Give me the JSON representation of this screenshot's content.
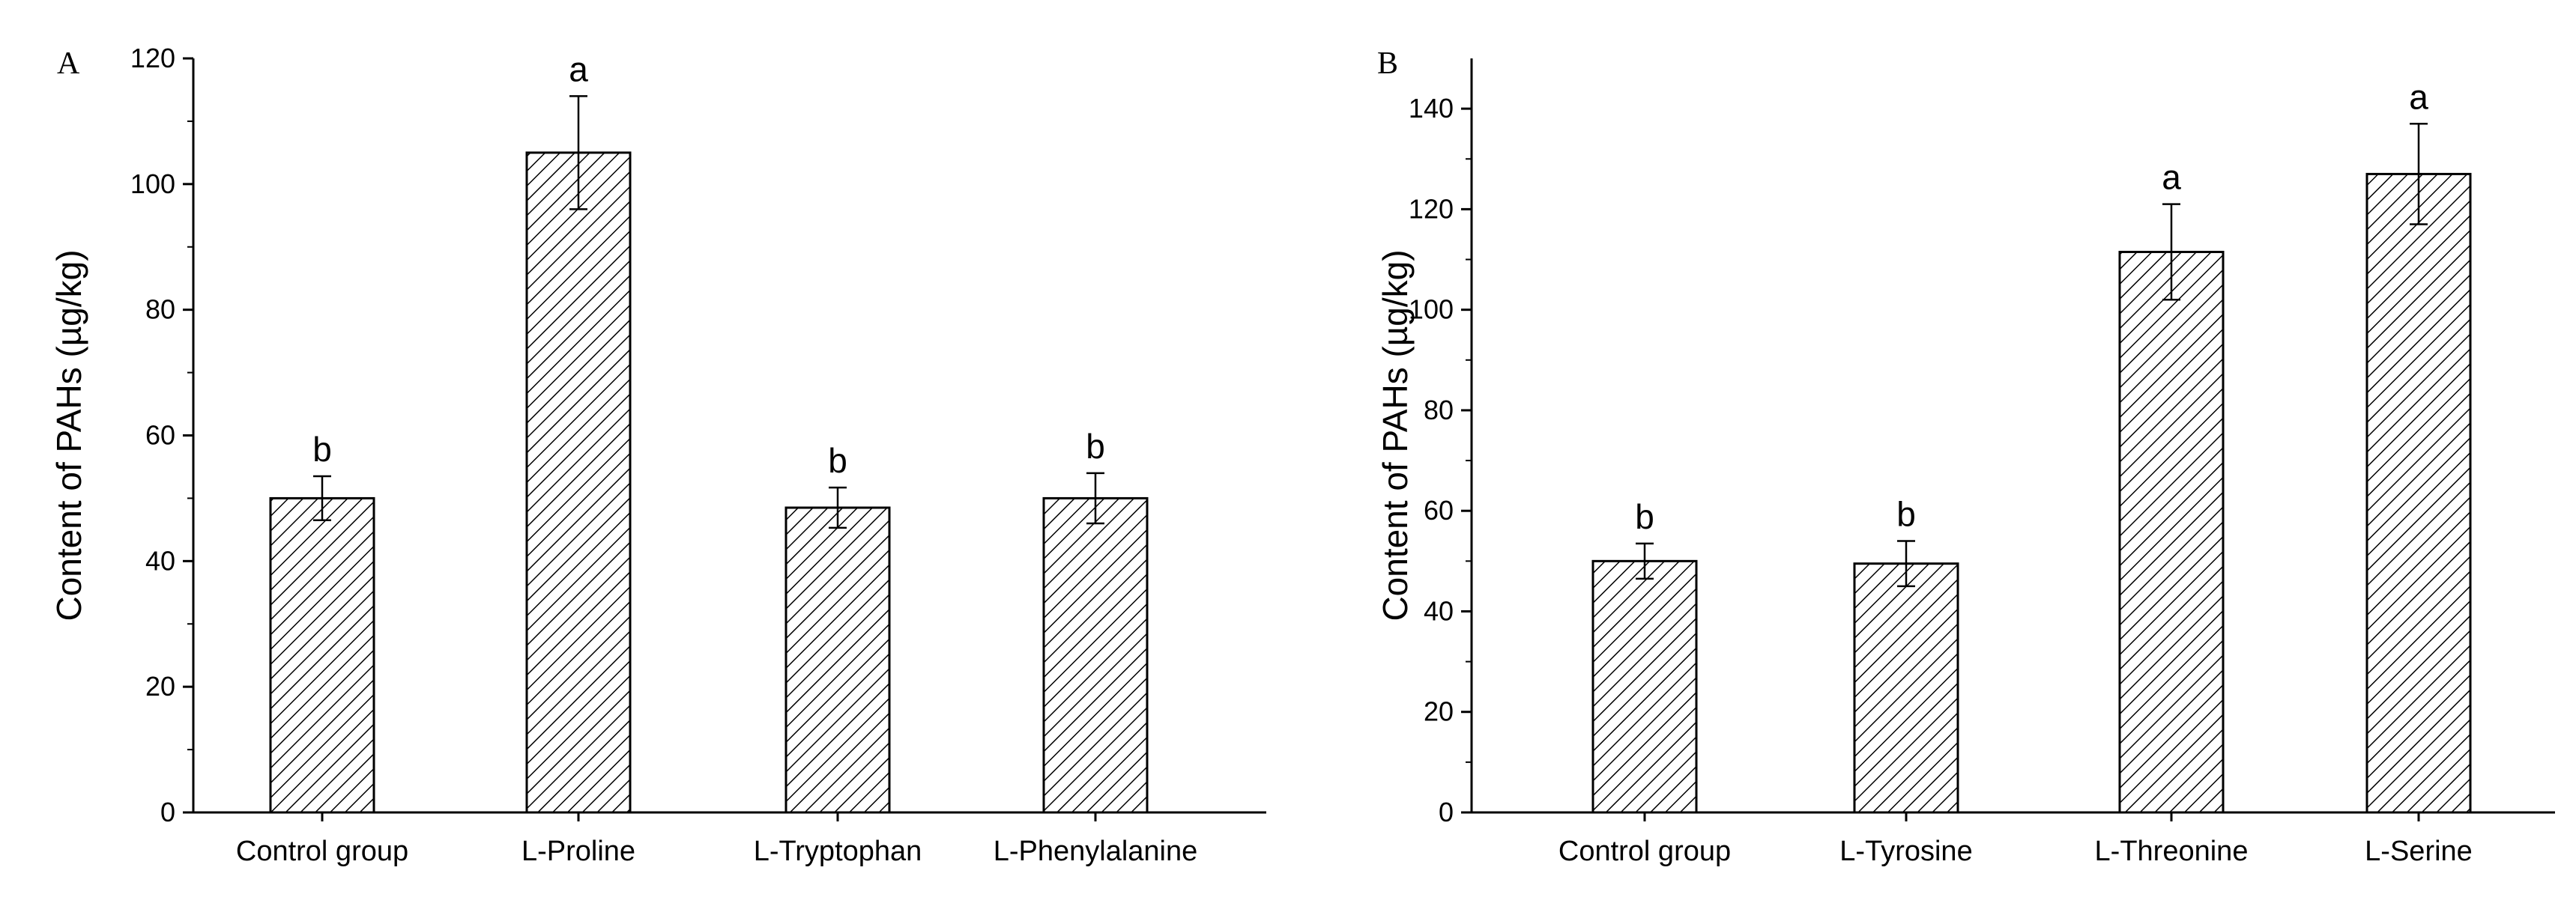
{
  "chart_data": [
    {
      "panel_label": "A",
      "type": "bar",
      "title": "",
      "xlabel": "",
      "ylabel": "Content of PAHs (µg/kg)",
      "ylim": [
        0,
        120
      ],
      "yticks": [
        0,
        20,
        40,
        60,
        80,
        100,
        120
      ],
      "categories": [
        "Control group",
        "L-Proline",
        "L-Tryptophan",
        "L-Phenylalanine"
      ],
      "values": [
        50,
        105,
        48.5,
        50
      ],
      "errors": [
        3.5,
        9,
        3.2,
        4
      ],
      "significance": [
        "b",
        "a",
        "b",
        "b"
      ],
      "pattern": "diagonal-hatch"
    },
    {
      "panel_label": "B",
      "type": "bar",
      "title": "",
      "xlabel": "",
      "ylabel": "Content of PAHs (µg/kg)",
      "ylim": [
        0,
        150
      ],
      "yticks": [
        0,
        20,
        40,
        60,
        80,
        100,
        120,
        140
      ],
      "categories": [
        "Control group",
        "L-Tyrosine",
        "L-Threonine",
        "L-Serine"
      ],
      "values": [
        50,
        49.5,
        111.5,
        127
      ],
      "errors": [
        3.5,
        4.5,
        9.5,
        10
      ],
      "significance": [
        "b",
        "b",
        "a",
        "a"
      ],
      "pattern": "diagonal-hatch"
    }
  ]
}
